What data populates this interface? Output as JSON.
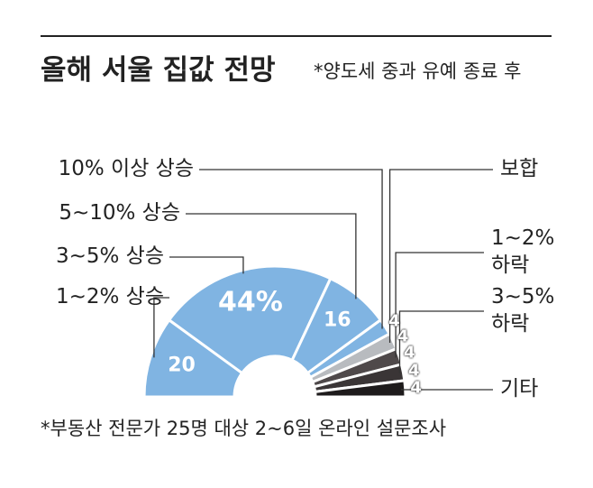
{
  "chart_data": {
    "type": "half-donut",
    "title": "올해 서울 집값 전망",
    "subtitle": "*양도세 중과 유예 종료 후",
    "note": "*부동산 전문가 25명 대상 2~6일 온라인 설문조사",
    "categories": [
      "1~2% 상승",
      "3~5% 상승",
      "5~10% 상승",
      "10% 이상 상승",
      "보합",
      "1~2%\n하락",
      "3~5%\n하락",
      "기타"
    ],
    "values": [
      20,
      44,
      16,
      4,
      4,
      4,
      4,
      4
    ],
    "value_labels": [
      "20",
      "44%",
      "16",
      "4",
      "4",
      "4",
      "4",
      "4"
    ],
    "colors": [
      "#80b4e2",
      "#80b4e2",
      "#80b4e2",
      "#80b4e2",
      "#b8bbbf",
      "#4f494a",
      "#3a3536",
      "#1e1b1c"
    ]
  }
}
